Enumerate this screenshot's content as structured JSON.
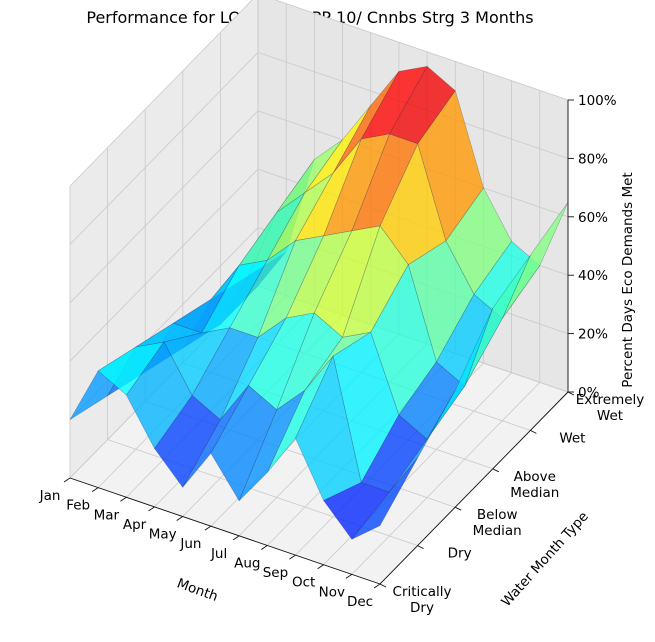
{
  "chart_data": {
    "type": "surface3d",
    "title": "Performance for LOI 5555, EPP 10/ Cnnbs Strg 3 Months",
    "xlabel": "Month",
    "ylabel": "Water Month Type",
    "zlabel": "Percent Days Eco Demands Met",
    "x_categories": [
      "Jan",
      "Feb",
      "Mar",
      "Apr",
      "May",
      "Jun",
      "Jul",
      "Aug",
      "Sep",
      "Oct",
      "Nov",
      "Dec"
    ],
    "y_categories": [
      [
        "Critically",
        "Dry"
      ],
      [
        "Dry"
      ],
      [
        "Below",
        "Median"
      ],
      [
        "Above",
        "Median"
      ],
      [
        "Wet"
      ],
      [
        "Extremely",
        "Wet"
      ]
    ],
    "z_ticks": [
      "0%",
      "20%",
      "40%",
      "60%",
      "80%",
      "100%"
    ],
    "zlim": [
      0,
      100
    ],
    "colormap": "jet",
    "grid": true,
    "z": [
      [
        20,
        40,
        35,
        20,
        10,
        25,
        12,
        25,
        40,
        22,
        12,
        20
      ],
      [
        15,
        35,
        40,
        25,
        20,
        35,
        30,
        40,
        55,
        15,
        15,
        30
      ],
      [
        10,
        30,
        30,
        35,
        35,
        45,
        50,
        45,
        50,
        25,
        20,
        40
      ],
      [
        5,
        25,
        40,
        45,
        55,
        60,
        65,
        70,
        60,
        30,
        25,
        55
      ],
      [
        0,
        20,
        45,
        55,
        65,
        80,
        85,
        85,
        55,
        40,
        35,
        60
      ],
      [
        0,
        15,
        50,
        60,
        75,
        90,
        95,
        90,
        60,
        45,
        40,
        65
      ]
    ]
  }
}
